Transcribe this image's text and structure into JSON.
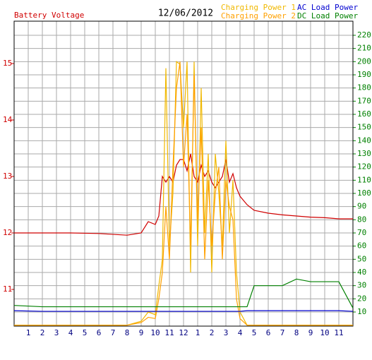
{
  "chart_data": {
    "type": "line",
    "title": "12/06/2012",
    "x": [
      0,
      2,
      4,
      6,
      8,
      9,
      9.5,
      10,
      10.25,
      10.5,
      10.75,
      11,
      11.25,
      11.5,
      11.75,
      12,
      12.25,
      12.5,
      12.75,
      13,
      13.25,
      13.5,
      13.75,
      14,
      14.25,
      14.5,
      14.75,
      15,
      15.25,
      15.5,
      15.75,
      16,
      16.5,
      17,
      18,
      19,
      20,
      21,
      22,
      23,
      24
    ],
    "xlim": [
      0,
      24
    ],
    "xticks": [
      1,
      2,
      3,
      4,
      5,
      6,
      7,
      8,
      9,
      10,
      11,
      12,
      {
        "value": 13,
        "label": "1"
      },
      {
        "value": 14,
        "label": "2"
      },
      {
        "value": 15,
        "label": "3"
      },
      {
        "value": 16,
        "label": "4"
      },
      {
        "value": 17,
        "label": "5"
      },
      {
        "value": 18,
        "label": "6"
      },
      {
        "value": 19,
        "label": "7"
      },
      {
        "value": 20,
        "label": "8"
      },
      {
        "value": 21,
        "label": "9"
      },
      {
        "value": 22,
        "label": "10"
      },
      {
        "value": 23,
        "label": "11"
      }
    ],
    "ylim": [
      10.35,
      15.75
    ],
    "yticks": [
      11,
      12,
      13,
      14,
      15
    ],
    "y2lim": [
      -0.71,
      230.71
    ],
    "y2ticks": [
      10,
      20,
      30,
      40,
      50,
      60,
      70,
      80,
      90,
      100,
      110,
      120,
      130,
      140,
      150,
      160,
      170,
      180,
      190,
      200,
      210,
      220
    ],
    "grid": true,
    "series": [
      {
        "name": "Battery Voltage",
        "color": "#d00000",
        "axis": "y",
        "values": [
          12.0,
          12.0,
          12.0,
          11.99,
          11.96,
          12.0,
          12.2,
          12.15,
          12.3,
          13.0,
          12.9,
          13.0,
          12.9,
          13.2,
          13.3,
          13.3,
          13.1,
          13.4,
          13.0,
          12.9,
          13.2,
          13.0,
          13.1,
          12.9,
          12.8,
          12.9,
          13.0,
          13.3,
          12.9,
          13.05,
          12.8,
          12.65,
          12.5,
          12.4,
          12.35,
          12.32,
          12.3,
          12.28,
          12.27,
          12.25,
          12.25
        ]
      },
      {
        "name": "Charging Power 1",
        "color": "#f0b800",
        "axis": "y2",
        "values": [
          0,
          0,
          0,
          0,
          0,
          3,
          10,
          8,
          30,
          50,
          195,
          60,
          100,
          200,
          198,
          150,
          200,
          40,
          200,
          60,
          180,
          70,
          130,
          40,
          130,
          100,
          60,
          140,
          70,
          110,
          40,
          10,
          0,
          0,
          0,
          0,
          0,
          0,
          0,
          0,
          0
        ]
      },
      {
        "name": "Charging Power 2",
        "color": "#ffa000",
        "axis": "y2",
        "values": [
          0,
          0,
          0,
          0,
          0,
          2,
          6,
          5,
          20,
          40,
          90,
          50,
          120,
          180,
          200,
          120,
          160,
          60,
          190,
          80,
          150,
          50,
          110,
          60,
          100,
          120,
          50,
          110,
          90,
          80,
          20,
          5,
          0,
          0,
          0,
          0,
          0,
          0,
          0,
          0,
          0
        ]
      },
      {
        "name": "AC Load Power",
        "color": "#0000d0",
        "axis": "y2",
        "values": [
          11,
          10.5,
          10.5,
          10.5,
          10.5,
          10.5,
          10.5,
          10.5,
          10.5,
          10.5,
          10.5,
          10.5,
          10.5,
          10.5,
          10.5,
          10.5,
          10.5,
          10.5,
          10.5,
          10.5,
          10.5,
          10.5,
          10.5,
          10.5,
          10.5,
          10.5,
          10.5,
          10.5,
          10.5,
          10.5,
          10.5,
          10.5,
          11,
          11,
          11,
          11,
          11,
          11,
          11,
          11,
          10.5
        ]
      },
      {
        "name": "DC Load Power",
        "color": "#008000",
        "axis": "y2",
        "values": [
          15,
          14,
          14,
          14,
          14,
          14,
          14,
          14,
          14,
          14,
          14,
          14,
          14,
          14,
          14,
          14,
          14,
          14,
          14,
          14,
          14,
          14,
          14,
          14,
          14,
          14,
          14,
          14,
          14,
          14,
          14,
          14,
          14,
          30,
          30,
          30,
          35,
          33,
          33,
          33,
          13
        ]
      }
    ]
  }
}
